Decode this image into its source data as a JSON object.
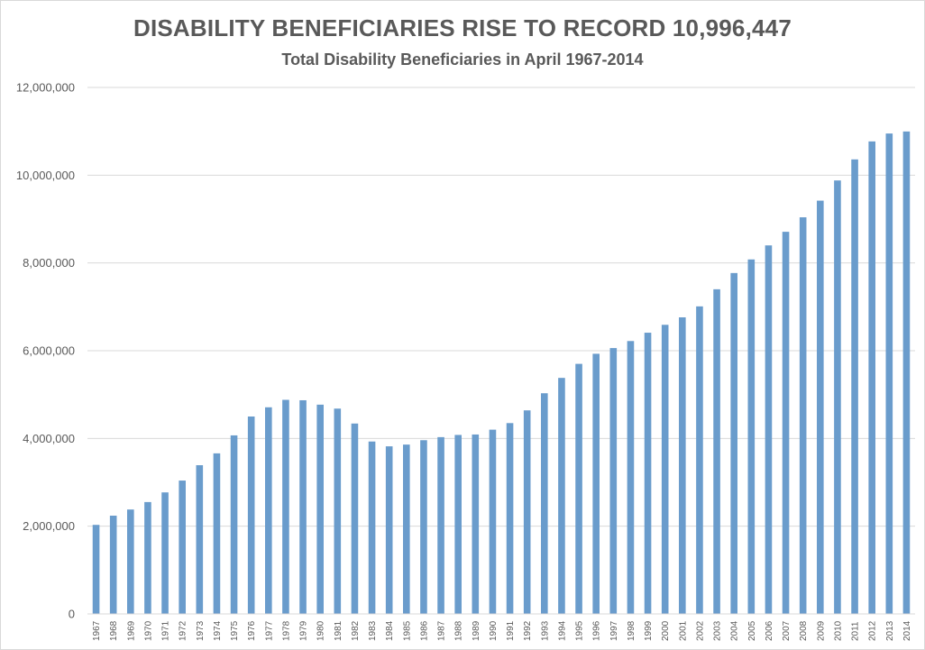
{
  "chart_data": {
    "type": "bar",
    "title": "DISABILITY BENEFICIARIES RISE TO RECORD 10,996,447",
    "subtitle": "Total Disability Beneficiaries in April 1967-2014",
    "xlabel": "",
    "ylabel": "",
    "ylim": [
      0,
      12000000
    ],
    "yticks": [
      {
        "value": 0,
        "label": "0"
      },
      {
        "value": 2000000,
        "label": "2,000,000"
      },
      {
        "value": 4000000,
        "label": "4,000,000"
      },
      {
        "value": 6000000,
        "label": "6,000,000"
      },
      {
        "value": 8000000,
        "label": "8,000,000"
      },
      {
        "value": 10000000,
        "label": "10,000,000"
      },
      {
        "value": 12000000,
        "label": "12,000,000"
      }
    ],
    "grid": true,
    "legend": "none",
    "bar_color": "#6a9ccc",
    "grid_color": "#d9d9d9",
    "categories": [
      "1967",
      "1968",
      "1969",
      "1970",
      "1971",
      "1972",
      "1973",
      "1974",
      "1975",
      "1976",
      "1977",
      "1978",
      "1979",
      "1980",
      "1981",
      "1982",
      "1983",
      "1984",
      "1985",
      "1986",
      "1987",
      "1988",
      "1989",
      "1990",
      "1991",
      "1992",
      "1993",
      "1994",
      "1995",
      "1996",
      "1997",
      "1998",
      "1999",
      "2000",
      "2001",
      "2002",
      "2003",
      "2004",
      "2005",
      "2006",
      "2007",
      "2008",
      "2009",
      "2010",
      "2011",
      "2012",
      "2013",
      "2014"
    ],
    "values": [
      2030000,
      2240000,
      2380000,
      2550000,
      2770000,
      3040000,
      3390000,
      3660000,
      4070000,
      4500000,
      4710000,
      4880000,
      4870000,
      4770000,
      4680000,
      4340000,
      3930000,
      3820000,
      3860000,
      3960000,
      4030000,
      4080000,
      4090000,
      4200000,
      4350000,
      4640000,
      5030000,
      5380000,
      5700000,
      5930000,
      6060000,
      6220000,
      6410000,
      6590000,
      6760000,
      7010000,
      7400000,
      7770000,
      8080000,
      8400000,
      8710000,
      9040000,
      9420000,
      9880000,
      10360000,
      10770000,
      10950000,
      10996447
    ]
  }
}
